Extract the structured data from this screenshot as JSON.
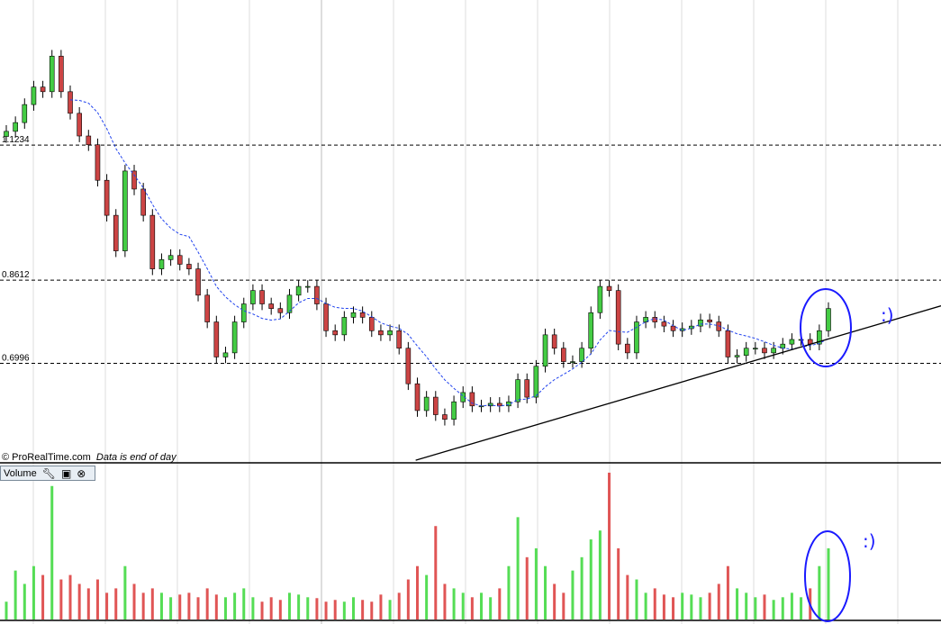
{
  "header": {
    "credit": "© ProRealTime.com",
    "credit_note": "Data is end of day"
  },
  "volume_panel": {
    "title": "Volume",
    "icons": [
      "wrench-icon",
      "window-icon",
      "close-icon"
    ]
  },
  "annotations": {
    "smiley_price": ":)",
    "smiley_volume": ":)",
    "circle_color": "#1a1aff"
  },
  "colors": {
    "up": "#44cc44",
    "down": "#cc4444",
    "moving_average": "#2244ee",
    "trendline": "#000000",
    "volume_up": "#55dd55",
    "volume_down": "#e05555"
  },
  "chart_data": [
    {
      "type": "candlestick",
      "title": "",
      "price_levels": [
        {
          "value": 1.1234,
          "label": "1.1234"
        },
        {
          "value": 0.8612,
          "label": "0.8612"
        },
        {
          "value": 0.6996,
          "label": "0.6996"
        }
      ],
      "ylim": [
        0.545,
        1.37
      ],
      "grid": true,
      "moving_average_period": 8,
      "trendline": {
        "start_index": 46,
        "start_value": 0.55,
        "end_value": 0.82
      },
      "open": [
        1.14,
        1.15,
        1.167,
        1.202,
        1.236,
        1.227,
        1.296,
        1.227,
        1.185,
        1.141,
        1.124,
        1.055,
        0.987,
        0.918,
        1.073,
        1.038,
        0.987,
        0.883,
        0.901,
        0.909,
        0.892,
        0.883,
        0.832,
        0.78,
        0.712,
        0.72,
        0.78,
        0.815,
        0.841,
        0.815,
        0.806,
        0.798,
        0.832,
        0.849,
        0.849,
        0.815,
        0.763,
        0.755,
        0.789,
        0.798,
        0.789,
        0.763,
        0.755,
        0.763,
        0.729,
        0.66,
        0.608,
        0.634,
        0.6,
        0.591,
        0.625,
        0.643,
        0.617,
        0.617,
        0.622,
        0.617,
        0.625,
        0.668,
        0.634,
        0.694,
        0.755,
        0.729,
        0.703,
        0.703,
        0.729,
        0.798,
        0.849,
        0.841,
        0.737,
        0.72,
        0.78,
        0.789,
        0.78,
        0.772,
        0.763,
        0.767,
        0.772,
        0.784,
        0.78,
        0.763,
        0.712,
        0.715,
        0.729,
        0.729,
        0.72,
        0.729,
        0.737,
        0.746,
        0.746,
        0.737,
        0.763
      ],
      "close": [
        1.15,
        1.167,
        1.202,
        1.236,
        1.227,
        1.296,
        1.227,
        1.185,
        1.141,
        1.124,
        1.055,
        0.987,
        0.918,
        1.073,
        1.038,
        0.987,
        0.883,
        0.901,
        0.909,
        0.892,
        0.883,
        0.832,
        0.78,
        0.712,
        0.72,
        0.78,
        0.815,
        0.841,
        0.815,
        0.806,
        0.798,
        0.832,
        0.849,
        0.849,
        0.815,
        0.763,
        0.755,
        0.789,
        0.798,
        0.789,
        0.763,
        0.755,
        0.763,
        0.729,
        0.66,
        0.608,
        0.634,
        0.6,
        0.591,
        0.625,
        0.643,
        0.617,
        0.617,
        0.622,
        0.617,
        0.625,
        0.668,
        0.634,
        0.694,
        0.755,
        0.729,
        0.703,
        0.703,
        0.729,
        0.798,
        0.849,
        0.841,
        0.737,
        0.72,
        0.78,
        0.789,
        0.78,
        0.772,
        0.763,
        0.767,
        0.772,
        0.784,
        0.78,
        0.763,
        0.712,
        0.715,
        0.729,
        0.729,
        0.72,
        0.729,
        0.737,
        0.746,
        0.746,
        0.737,
        0.763,
        0.806
      ]
    },
    {
      "type": "bar",
      "title": "Volume",
      "ylim": [
        0,
        170
      ],
      "values": [
        20,
        55,
        40,
        60,
        50,
        150,
        45,
        50,
        40,
        35,
        45,
        30,
        35,
        60,
        40,
        30,
        35,
        30,
        25,
        28,
        30,
        25,
        35,
        28,
        25,
        30,
        35,
        25,
        20,
        25,
        22,
        30,
        28,
        25,
        24,
        20,
        22,
        20,
        25,
        22,
        20,
        28,
        22,
        30,
        45,
        60,
        50,
        105,
        40,
        35,
        30,
        25,
        30,
        25,
        35,
        60,
        115,
        70,
        80,
        60,
        40,
        30,
        55,
        70,
        90,
        100,
        165,
        80,
        50,
        45,
        30,
        35,
        28,
        25,
        30,
        28,
        25,
        30,
        40,
        60,
        35,
        30,
        25,
        28,
        22,
        25,
        30,
        25,
        35,
        60,
        80
      ]
    }
  ]
}
